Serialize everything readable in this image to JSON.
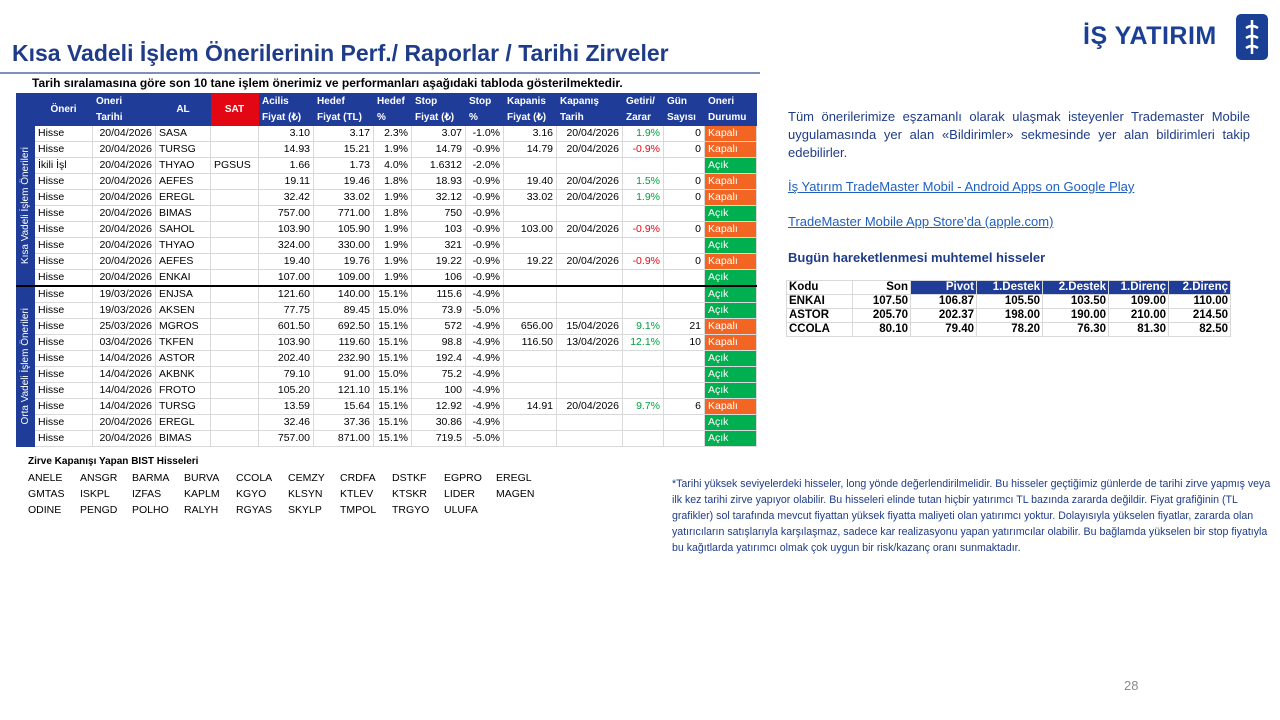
{
  "header": {
    "title": "Kısa Vadeli İşlem Önerilerinin Perf./ Raporlar / Tarihi Zirveler",
    "logo": "İŞ YATIRIM"
  },
  "subtitle": "Tarih sıralamasına göre son 10 tane işlem önerimiz ve performanları aşağıdaki tabloda gösterilmektedir.",
  "table": {
    "header_top": [
      "Öneri",
      "Oneri",
      "AL",
      "SAT",
      "Acilis",
      "Hedef",
      "Hedef",
      "Stop",
      "Stop",
      "Kapanis",
      "Kapanış",
      "Getiri/",
      "Gün",
      "Oneri"
    ],
    "header_bottom": [
      null,
      "Tarihi",
      null,
      null,
      "Fiyat (₺)",
      "Fiyat (TL)",
      "%",
      "Fiyat (₺)",
      "%",
      "Fiyat (₺)",
      "Tarih",
      "Zarar",
      "Sayısı",
      "Durumu"
    ],
    "groups": [
      {
        "label": "Kısa Vadeli İşlem Önerileri",
        "rows": [
          [
            "Hisse",
            "20/04/2026",
            "SASA",
            null,
            "3.10",
            "3.17",
            "2.3%",
            "3.07",
            "-1.0%",
            "3.16",
            "20/04/2026",
            "1.9%",
            "0",
            "Kapalı"
          ],
          [
            "Hisse",
            "20/04/2026",
            "TURSG",
            null,
            "14.93",
            "15.21",
            "1.9%",
            "14.79",
            "-0.9%",
            "14.79",
            "20/04/2026",
            "-0.9%",
            "0",
            "Kapalı"
          ],
          [
            "İkili İşl",
            "20/04/2026",
            "THYAO",
            "PGSUS",
            "1.66",
            "1.73",
            "4.0%",
            "1.6312",
            "-2.0%",
            null,
            null,
            null,
            null,
            "Açık"
          ],
          [
            "Hisse",
            "20/04/2026",
            "AEFES",
            null,
            "19.11",
            "19.46",
            "1.8%",
            "18.93",
            "-0.9%",
            "19.40",
            "20/04/2026",
            "1.5%",
            "0",
            "Kapalı"
          ],
          [
            "Hisse",
            "20/04/2026",
            "EREGL",
            null,
            "32.42",
            "33.02",
            "1.9%",
            "32.12",
            "-0.9%",
            "33.02",
            "20/04/2026",
            "1.9%",
            "0",
            "Kapalı"
          ],
          [
            "Hisse",
            "20/04/2026",
            "BIMAS",
            null,
            "757.00",
            "771.00",
            "1.8%",
            "750",
            "-0.9%",
            null,
            null,
            null,
            null,
            "Açık"
          ],
          [
            "Hisse",
            "20/04/2026",
            "SAHOL",
            null,
            "103.90",
            "105.90",
            "1.9%",
            "103",
            "-0.9%",
            "103.00",
            "20/04/2026",
            "-0.9%",
            "0",
            "Kapalı"
          ],
          [
            "Hisse",
            "20/04/2026",
            "THYAO",
            null,
            "324.00",
            "330.00",
            "1.9%",
            "321",
            "-0.9%",
            null,
            null,
            null,
            null,
            "Açık"
          ],
          [
            "Hisse",
            "20/04/2026",
            "AEFES",
            null,
            "19.40",
            "19.76",
            "1.9%",
            "19.22",
            "-0.9%",
            "19.22",
            "20/04/2026",
            "-0.9%",
            "0",
            "Kapalı"
          ],
          [
            "Hisse",
            "20/04/2026",
            "ENKAI",
            null,
            "107.00",
            "109.00",
            "1.9%",
            "106",
            "-0.9%",
            null,
            null,
            null,
            null,
            "Açık"
          ]
        ]
      },
      {
        "label": "Orta Vadeli İşlem Önerileri",
        "rows": [
          [
            "Hisse",
            "19/03/2026",
            "ENJSA",
            null,
            "121.60",
            "140.00",
            "15.1%",
            "115.6",
            "-4.9%",
            null,
            null,
            null,
            null,
            "Açık"
          ],
          [
            "Hisse",
            "19/03/2026",
            "AKSEN",
            null,
            "77.75",
            "89.45",
            "15.0%",
            "73.9",
            "-5.0%",
            null,
            null,
            null,
            null,
            "Açık"
          ],
          [
            "Hisse",
            "25/03/2026",
            "MGROS",
            null,
            "601.50",
            "692.50",
            "15.1%",
            "572",
            "-4.9%",
            "656.00",
            "15/04/2026",
            "9.1%",
            "21",
            "Kapalı"
          ],
          [
            "Hisse",
            "03/04/2026",
            "TKFEN",
            null,
            "103.90",
            "119.60",
            "15.1%",
            "98.8",
            "-4.9%",
            "116.50",
            "13/04/2026",
            "12.1%",
            "10",
            "Kapalı"
          ],
          [
            "Hisse",
            "14/04/2026",
            "ASTOR",
            null,
            "202.40",
            "232.90",
            "15.1%",
            "192.4",
            "-4.9%",
            null,
            null,
            null,
            null,
            "Açık"
          ],
          [
            "Hisse",
            "14/04/2026",
            "AKBNK",
            null,
            "79.10",
            "91.00",
            "15.0%",
            "75.2",
            "-4.9%",
            null,
            null,
            null,
            null,
            "Açık"
          ],
          [
            "Hisse",
            "14/04/2026",
            "FROTO",
            null,
            "105.20",
            "121.10",
            "15.1%",
            "100",
            "-4.9%",
            null,
            null,
            null,
            null,
            "Açık"
          ],
          [
            "Hisse",
            "14/04/2026",
            "TURSG",
            null,
            "13.59",
            "15.64",
            "15.1%",
            "12.92",
            "-4.9%",
            "14.91",
            "20/04/2026",
            "9.7%",
            "6",
            "Kapalı"
          ],
          [
            "Hisse",
            "20/04/2026",
            "EREGL",
            null,
            "32.46",
            "37.36",
            "15.1%",
            "30.86",
            "-4.9%",
            null,
            null,
            null,
            null,
            "Açık"
          ],
          [
            "Hisse",
            "20/04/2026",
            "BIMAS",
            null,
            "757.00",
            "871.00",
            "15.1%",
            "719.5",
            "-5.0%",
            null,
            null,
            null,
            null,
            "Açık"
          ]
        ]
      }
    ]
  },
  "info": {
    "text": "Tüm önerilerimize eşzamanlı olarak ulaşmak isteyenler Trademaster Mobile uygulamasında yer alan «Bildirimler» sekmesinde yer alan bildirimleri takip edebilirler.",
    "links": [
      "İş Yatırım TradeMaster Mobil - Android Apps on Google Play",
      "TradeMaster Mobile App Store’da (apple.com)"
    ],
    "heading": "Bugün hareketlenmesi muhtemel hisseler"
  },
  "pivot_table": {
    "columns": [
      "Kodu",
      "Son",
      "Pivot",
      "1.Destek",
      "2.Destek",
      "1.Direnç",
      "2.Direnç"
    ],
    "rows": [
      [
        "ENKAI",
        "107.50",
        "106.87",
        "105.50",
        "103.50",
        "109.00",
        "110.00"
      ],
      [
        "ASTOR",
        "205.70",
        "202.37",
        "198.00",
        "190.00",
        "210.00",
        "214.50"
      ],
      [
        "CCOLA",
        "80.10",
        "79.40",
        "78.20",
        "76.30",
        "81.30",
        "82.50"
      ]
    ]
  },
  "highs": {
    "title": "Zirve Kapanışı Yapan BIST Hisseleri",
    "rows": [
      [
        "ANELE",
        "ANSGR",
        "BARMA",
        "BURVA",
        "CCOLA",
        "CEMZY",
        "CRDFA",
        "DSTKF",
        "EGPRO",
        "EREGL"
      ],
      [
        "GMTAS",
        "ISKPL",
        "IZFAS",
        "KAPLM",
        "KGYO",
        "KLSYN",
        "KTLEV",
        "KTSKR",
        "LIDER",
        "MAGEN"
      ],
      [
        "ODINE",
        "PENGD",
        "POLHO",
        "RALYH",
        "RGYAS",
        "SKYLP",
        "TMPOL",
        "TRGYO",
        "ULUFA"
      ]
    ]
  },
  "note": "*Tarihi yüksek seviyelerdeki hisseler, long yönde değerlendirilmelidir. Bu hisseler geçtiğimiz günlerde de tarihi zirve yapmış veya ilk kez tarihi zirve yapıyor olabilir. Bu hisseleri elinde tutan hiçbir yatırımcı TL bazında zararda değildir. Fiyat grafiğinin (TL grafikler) sol tarafında mevcut fiyattan yüksek fiyatta maliyeti olan yatırımcı yoktur. Dolayısıyla yükselen fiyatlar, zararda olan yatırıcıların satışlarıyla karşılaşmaz, sadece kar realizasyonu yapan yatırımcılar olabilir. Bu bağlamda yükselen bir stop fiyatıyla bu kağıtlarda yatırımcı olmak çok uygun bir risk/kazanç oranı sunmaktadır.",
  "page_number": "28"
}
